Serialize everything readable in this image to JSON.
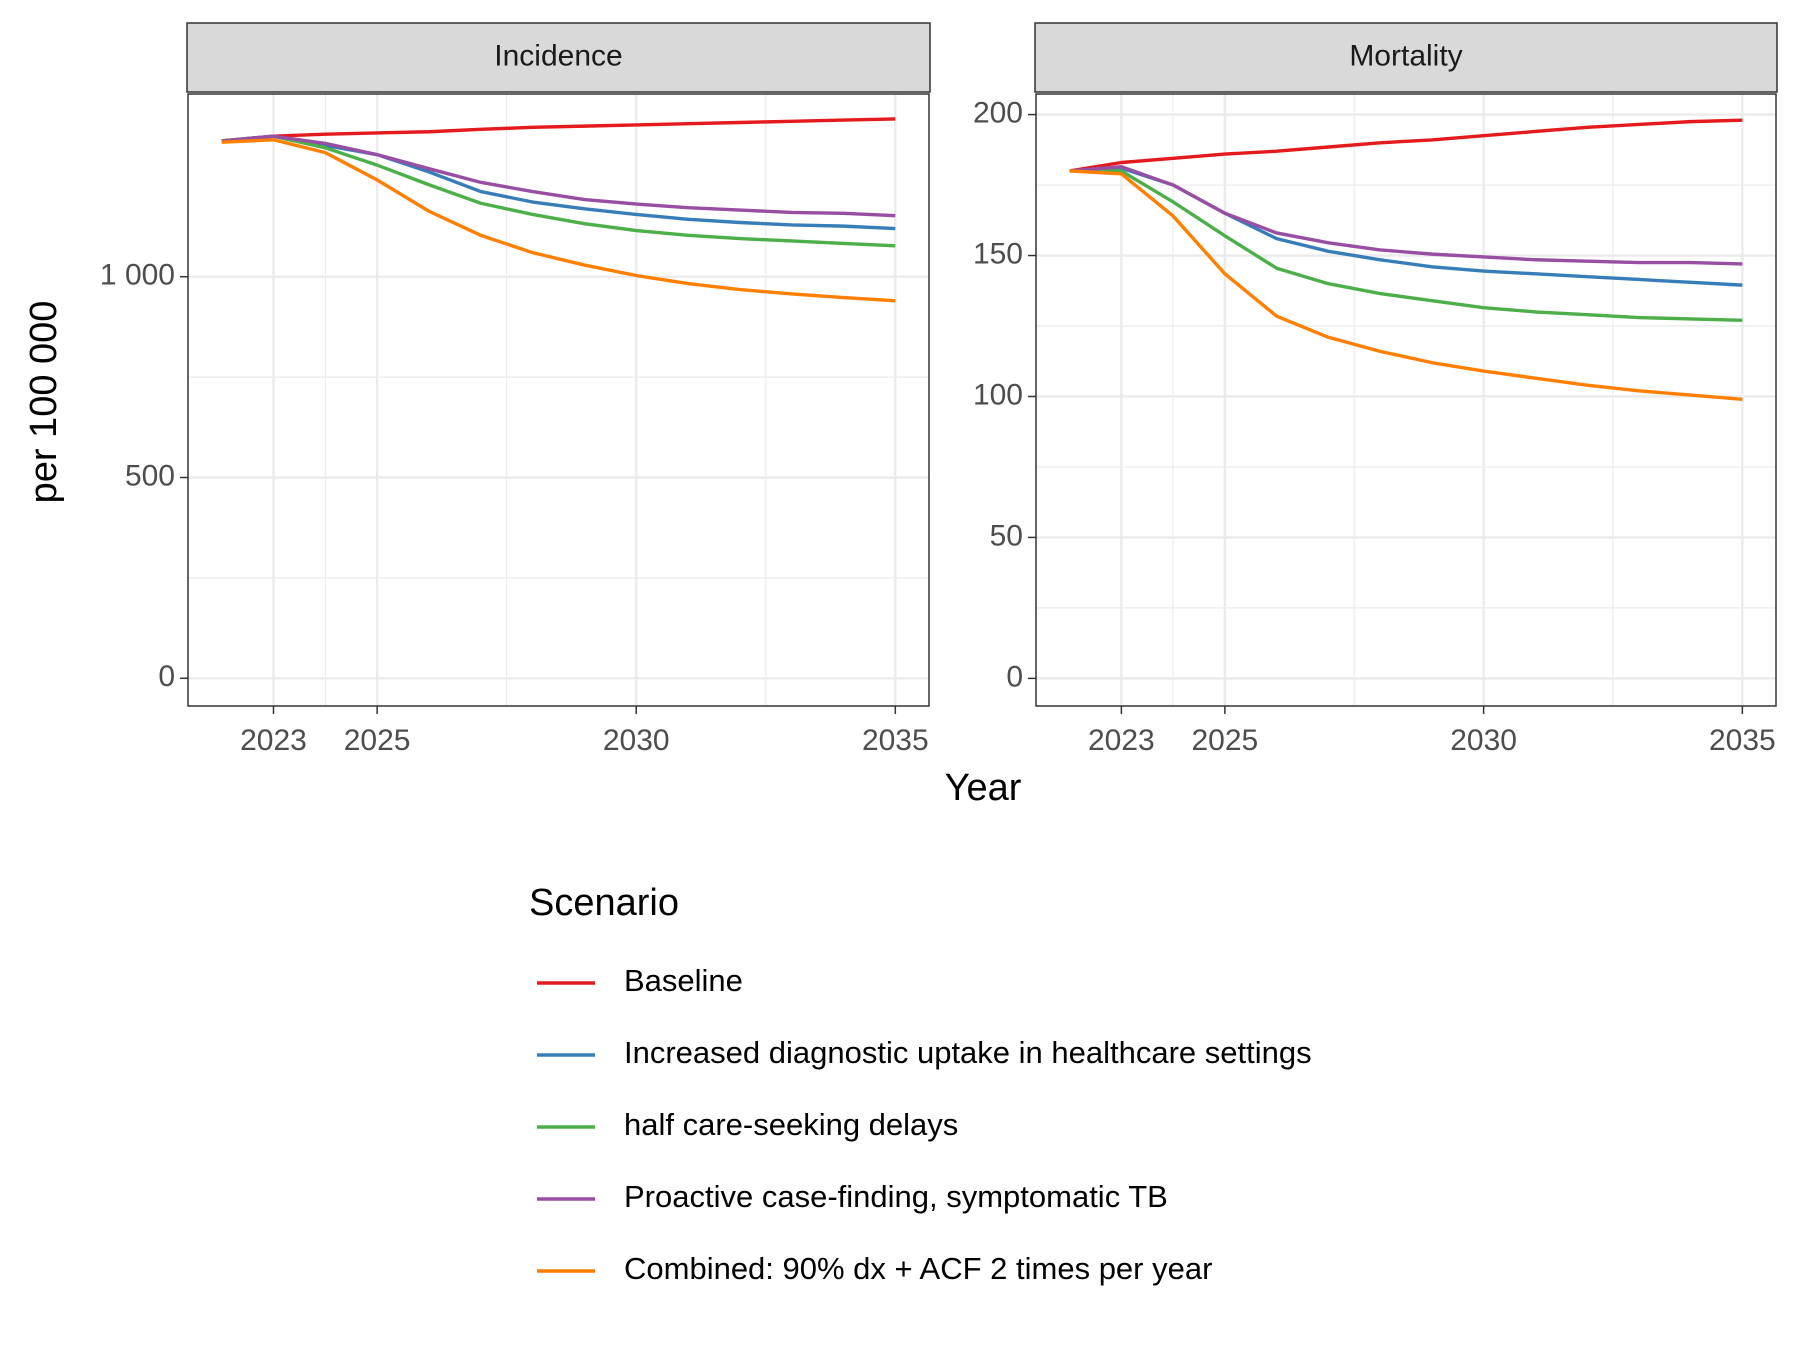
{
  "chart_data": [
    {
      "type": "line",
      "title": "Incidence",
      "x": [
        2022,
        2023,
        2024,
        2025,
        2026,
        2027,
        2028,
        2029,
        2030,
        2031,
        2032,
        2033,
        2034,
        2035
      ],
      "xlim": [
        2021.35,
        2035.65
      ],
      "xticks": [
        2023,
        2025,
        2030,
        2035
      ],
      "ylim": [
        -69,
        1455
      ],
      "yticks": [
        0,
        500,
        {
          "value": 1000,
          "label": "1 000"
        }
      ],
      "grid": true,
      "series": [
        {
          "name": "Baseline",
          "color": "#e41a1c",
          "values": [
            1338,
            1350,
            1355,
            1358,
            1361,
            1367,
            1372,
            1375,
            1378,
            1381,
            1384,
            1387,
            1390,
            1393
          ]
        },
        {
          "name": "Increased diagnostic uptake in healthcare settings",
          "color": "#377eb8",
          "values": [
            1338,
            1350,
            1327,
            1304,
            1261,
            1212,
            1186,
            1169,
            1155,
            1143,
            1135,
            1129,
            1126,
            1120
          ]
        },
        {
          "name": "half care-seeking delays",
          "color": "#4daf4a",
          "values": [
            1338,
            1350,
            1321,
            1278,
            1229,
            1183,
            1155,
            1132,
            1115,
            1103,
            1095,
            1089,
            1083,
            1077
          ]
        },
        {
          "name": "Proactive case-finding, symptomatic TB",
          "color": "#984ea3",
          "values": [
            1338,
            1350,
            1332,
            1304,
            1269,
            1235,
            1212,
            1192,
            1181,
            1172,
            1166,
            1160,
            1158,
            1152
          ]
        },
        {
          "name": "Combined: 90% dx + ACF 2 times per year",
          "color": "#ff7f00",
          "values": [
            1335,
            1341,
            1309,
            1241,
            1163,
            1103,
            1060,
            1029,
            1003,
            983,
            968,
            957,
            948,
            940
          ]
        }
      ]
    },
    {
      "type": "line",
      "title": "Mortality",
      "x": [
        2022,
        2023,
        2024,
        2025,
        2026,
        2027,
        2028,
        2029,
        2030,
        2031,
        2032,
        2033,
        2034,
        2035
      ],
      "xlim": [
        2021.35,
        2035.65
      ],
      "xticks": [
        2023,
        2025,
        2030,
        2035
      ],
      "ylim": [
        -9.8,
        207.3
      ],
      "yticks": [
        0,
        50,
        100,
        150,
        200
      ],
      "grid": true,
      "series": [
        {
          "name": "Baseline",
          "color": "#e41a1c",
          "values": [
            180,
            183,
            184.5,
            186,
            187,
            188.5,
            190,
            191,
            192.5,
            194,
            195.5,
            196.5,
            197.5,
            198
          ]
        },
        {
          "name": "Increased diagnostic uptake in healthcare settings",
          "color": "#377eb8",
          "values": [
            180,
            181,
            175,
            165,
            156,
            151.5,
            148.5,
            146,
            144.5,
            143.5,
            142.5,
            141.5,
            140.5,
            139.5
          ]
        },
        {
          "name": "half care-seeking delays",
          "color": "#4daf4a",
          "values": [
            180,
            180,
            169,
            157,
            145.5,
            140,
            136.5,
            134,
            131.5,
            130,
            129,
            128,
            127.5,
            127
          ]
        },
        {
          "name": "Proactive case-finding, symptomatic TB",
          "color": "#984ea3",
          "values": [
            180,
            181.5,
            175,
            165,
            158,
            154.5,
            152,
            150.5,
            149.5,
            148.5,
            148,
            147.5,
            147.5,
            147
          ]
        },
        {
          "name": "Combined: 90% dx + ACF 2 times per year",
          "color": "#ff7f00",
          "values": [
            180,
            179,
            164,
            143.5,
            128.5,
            121,
            116,
            112,
            109,
            106.5,
            104,
            102,
            100.5,
            99
          ]
        }
      ]
    }
  ],
  "x_label": "Year",
  "y_label": "per 100 000",
  "legend_title": "Scenario"
}
